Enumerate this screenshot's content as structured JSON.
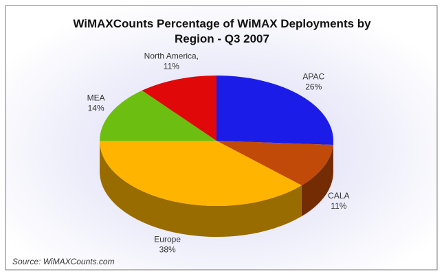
{
  "chart_data": {
    "type": "pie",
    "title": "WiMAXCounts Percentage of WiMAX Deployments by Region - Q3 2007",
    "categories": [
      "APAC",
      "CALA",
      "Europe",
      "MEA",
      "North America,"
    ],
    "values": [
      26,
      11,
      38,
      14,
      11
    ],
    "value_labels": [
      "26%",
      "11%",
      "38%",
      "14%",
      "11%"
    ],
    "colors": [
      "#1c1ce8",
      "#c24a08",
      "#ffb400",
      "#6cbf10",
      "#e00808"
    ],
    "source": "Source: WiMAXCounts.com"
  }
}
